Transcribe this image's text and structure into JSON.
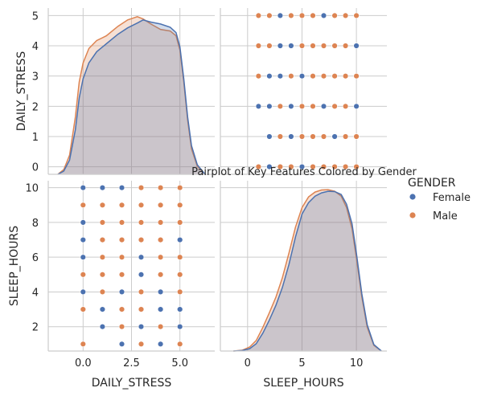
{
  "colors": {
    "female": "#4c72b0",
    "male": "#dd8452",
    "grid": "#cccccc",
    "spine": "#cccccc",
    "text": "#262626"
  },
  "chart_data": {
    "type": "pairplot",
    "title": "Pairplot of Key Features Colored by Gender",
    "variables": [
      "DAILY_STRESS",
      "SLEEP_HOURS"
    ],
    "hue": "GENDER",
    "legend": {
      "title": "GENDER",
      "entries": [
        "Female",
        "Male"
      ],
      "placement": "right"
    },
    "axes": {
      "DAILY_STRESS": {
        "range": [
          -1.8,
          6.8
        ],
        "ticks": [
          0.0,
          2.5,
          5.0
        ],
        "tick_labels": [
          "0.0",
          "2.5",
          "5.0"
        ]
      },
      "DAILY_STRESS_y": {
        "range": [
          -0.25,
          5.25
        ],
        "ticks": [
          0,
          1,
          2,
          3,
          4,
          5
        ],
        "tick_labels": [
          "0",
          "1",
          "2",
          "3",
          "4",
          "5"
        ]
      },
      "SLEEP_HOURS": {
        "range": [
          -2.5,
          12.8
        ],
        "ticks": [
          0,
          5,
          10
        ],
        "tick_labels": [
          "0",
          "5",
          "10"
        ]
      },
      "SLEEP_HOURS_y": {
        "range": [
          0.6,
          10.4
        ],
        "ticks": [
          2,
          4,
          6,
          8,
          10
        ],
        "tick_labels": [
          "2",
          "4",
          "6",
          "8",
          "10"
        ]
      }
    },
    "panels": {
      "stress_kde": {
        "x": "DAILY_STRESS",
        "series": [
          {
            "name": "Female",
            "points": [
              [
                -1.3,
                0.0
              ],
              [
                -1.0,
                0.1
              ],
              [
                -0.7,
                0.45
              ],
              [
                -0.4,
                1.4
              ],
              [
                -0.2,
                2.4
              ],
              [
                0.0,
                3.0
              ],
              [
                0.3,
                3.5
              ],
              [
                0.7,
                3.85
              ],
              [
                1.2,
                4.1
              ],
              [
                1.8,
                4.4
              ],
              [
                2.3,
                4.6
              ],
              [
                2.8,
                4.75
              ],
              [
                3.1,
                4.85
              ],
              [
                3.5,
                4.78
              ],
              [
                4.0,
                4.72
              ],
              [
                4.5,
                4.62
              ],
              [
                4.8,
                4.45
              ],
              [
                5.0,
                4.0
              ],
              [
                5.2,
                3.0
              ],
              [
                5.4,
                1.8
              ],
              [
                5.6,
                0.9
              ],
              [
                5.9,
                0.3
              ],
              [
                6.3,
                0.0
              ]
            ]
          },
          {
            "name": "Male",
            "points": [
              [
                -1.3,
                0.0
              ],
              [
                -1.0,
                0.15
              ],
              [
                -0.7,
                0.6
              ],
              [
                -0.4,
                1.8
              ],
              [
                -0.2,
                2.9
              ],
              [
                0.0,
                3.5
              ],
              [
                0.3,
                3.95
              ],
              [
                0.7,
                4.2
              ],
              [
                1.2,
                4.35
              ],
              [
                1.8,
                4.65
              ],
              [
                2.3,
                4.85
              ],
              [
                2.8,
                4.95
              ],
              [
                3.1,
                4.88
              ],
              [
                3.5,
                4.72
              ],
              [
                4.0,
                4.55
              ],
              [
                4.5,
                4.5
              ],
              [
                4.8,
                4.35
              ],
              [
                5.0,
                3.9
              ],
              [
                5.2,
                2.9
              ],
              [
                5.4,
                1.7
              ],
              [
                5.6,
                0.8
              ],
              [
                5.9,
                0.25
              ],
              [
                6.3,
                0.0
              ]
            ]
          }
        ]
      },
      "sleep_vs_stress": {
        "x": "SLEEP_HOURS",
        "y": "DAILY_STRESS",
        "series": [
          {
            "name": "Male",
            "points": [
              [
                1,
                5
              ],
              [
                2,
                5
              ],
              [
                4,
                5
              ],
              [
                5,
                5
              ],
              [
                6,
                5
              ],
              [
                8,
                5
              ],
              [
                9,
                5
              ],
              [
                10,
                5
              ],
              [
                1,
                4
              ],
              [
                2,
                4
              ],
              [
                5,
                4
              ],
              [
                6,
                4
              ],
              [
                7,
                4
              ],
              [
                8,
                4
              ],
              [
                9,
                4
              ],
              [
                1,
                3
              ],
              [
                4,
                3
              ],
              [
                6,
                3
              ],
              [
                7,
                3
              ],
              [
                8,
                3
              ],
              [
                9,
                3
              ],
              [
                10,
                3
              ],
              [
                3,
                2
              ],
              [
                5,
                2
              ],
              [
                6,
                2
              ],
              [
                8,
                2
              ],
              [
                9,
                2
              ],
              [
                3,
                1
              ],
              [
                5,
                1
              ],
              [
                6,
                1
              ],
              [
                7,
                1
              ],
              [
                9,
                1
              ],
              [
                10,
                1
              ],
              [
                1,
                0
              ],
              [
                3,
                0
              ],
              [
                4,
                0
              ],
              [
                6,
                0
              ],
              [
                7,
                0
              ],
              [
                8,
                0
              ],
              [
                9,
                0
              ],
              [
                10,
                0
              ]
            ]
          },
          {
            "name": "Female",
            "points": [
              [
                3,
                5
              ],
              [
                7,
                5
              ],
              [
                3,
                4
              ],
              [
                4,
                4
              ],
              [
                10,
                4
              ],
              [
                2,
                3
              ],
              [
                3,
                3
              ],
              [
                5,
                3
              ],
              [
                1,
                2
              ],
              [
                2,
                2
              ],
              [
                4,
                2
              ],
              [
                7,
                2
              ],
              [
                10,
                2
              ],
              [
                2,
                1
              ],
              [
                4,
                1
              ],
              [
                8,
                1
              ],
              [
                2,
                0
              ],
              [
                5,
                0
              ]
            ]
          }
        ]
      },
      "stress_vs_sleep": {
        "x": "DAILY_STRESS",
        "y": "SLEEP_HOURS",
        "series": [
          {
            "name": "Male",
            "points": [
              [
                3,
                10
              ],
              [
                4,
                10
              ],
              [
                5,
                10
              ],
              [
                0,
                9
              ],
              [
                1,
                9
              ],
              [
                2,
                9
              ],
              [
                3,
                9
              ],
              [
                4,
                9
              ],
              [
                5,
                9
              ],
              [
                1,
                8
              ],
              [
                2,
                8
              ],
              [
                3,
                8
              ],
              [
                4,
                8
              ],
              [
                5,
                8
              ],
              [
                1,
                7
              ],
              [
                2,
                7
              ],
              [
                3,
                7
              ],
              [
                4,
                7
              ],
              [
                1,
                6
              ],
              [
                2,
                6
              ],
              [
                4,
                6
              ],
              [
                5,
                6
              ],
              [
                0,
                5
              ],
              [
                1,
                5
              ],
              [
                2,
                5
              ],
              [
                4,
                5
              ],
              [
                5,
                5
              ],
              [
                1,
                4
              ],
              [
                3,
                4
              ],
              [
                5,
                4
              ],
              [
                0,
                3
              ],
              [
                2,
                3
              ],
              [
                3,
                3
              ],
              [
                2,
                2
              ],
              [
                4,
                2
              ],
              [
                0,
                1
              ],
              [
                3,
                1
              ],
              [
                5,
                1
              ]
            ]
          },
          {
            "name": "Female",
            "points": [
              [
                0,
                10
              ],
              [
                1,
                10
              ],
              [
                2,
                10
              ],
              [
                0,
                8
              ],
              [
                0,
                7
              ],
              [
                5,
                7
              ],
              [
                0,
                6
              ],
              [
                3,
                6
              ],
              [
                3,
                5
              ],
              [
                0,
                4
              ],
              [
                2,
                4
              ],
              [
                4,
                4
              ],
              [
                1,
                3
              ],
              [
                4,
                3
              ],
              [
                5,
                3
              ],
              [
                1,
                2
              ],
              [
                3,
                2
              ],
              [
                5,
                2
              ],
              [
                2,
                1
              ],
              [
                4,
                1
              ]
            ]
          }
        ]
      },
      "sleep_kde": {
        "x": "SLEEP_HOURS",
        "series": [
          {
            "name": "Female",
            "points": [
              [
                -1.3,
                0.0
              ],
              [
                -0.5,
                0.03
              ],
              [
                0.2,
                0.15
              ],
              [
                0.8,
                0.45
              ],
              [
                1.4,
                1.1
              ],
              [
                2.0,
                1.9
              ],
              [
                2.6,
                2.8
              ],
              [
                3.2,
                3.9
              ],
              [
                3.8,
                5.3
              ],
              [
                4.4,
                7.0
              ],
              [
                5.0,
                8.4
              ],
              [
                5.6,
                9.1
              ],
              [
                6.2,
                9.5
              ],
              [
                6.8,
                9.7
              ],
              [
                7.4,
                9.8
              ],
              [
                8.0,
                9.78
              ],
              [
                8.6,
                9.6
              ],
              [
                9.1,
                9.0
              ],
              [
                9.6,
                7.8
              ],
              [
                10.0,
                6.0
              ],
              [
                10.5,
                3.5
              ],
              [
                11.0,
                1.6
              ],
              [
                11.6,
                0.4
              ],
              [
                12.3,
                0.0
              ]
            ]
          },
          {
            "name": "Male",
            "points": [
              [
                -1.3,
                0.0
              ],
              [
                -0.5,
                0.05
              ],
              [
                0.2,
                0.25
              ],
              [
                0.8,
                0.65
              ],
              [
                1.4,
                1.45
              ],
              [
                2.0,
                2.35
              ],
              [
                2.6,
                3.3
              ],
              [
                3.2,
                4.5
              ],
              [
                3.8,
                6.0
              ],
              [
                4.4,
                7.6
              ],
              [
                5.0,
                8.8
              ],
              [
                5.6,
                9.45
              ],
              [
                6.2,
                9.75
              ],
              [
                6.8,
                9.88
              ],
              [
                7.4,
                9.9
              ],
              [
                8.0,
                9.8
              ],
              [
                8.6,
                9.5
              ],
              [
                9.1,
                8.8
              ],
              [
                9.6,
                7.5
              ],
              [
                10.0,
                5.7
              ],
              [
                10.5,
                3.3
              ],
              [
                11.0,
                1.45
              ],
              [
                11.6,
                0.35
              ],
              [
                12.3,
                0.0
              ]
            ]
          }
        ]
      }
    }
  }
}
